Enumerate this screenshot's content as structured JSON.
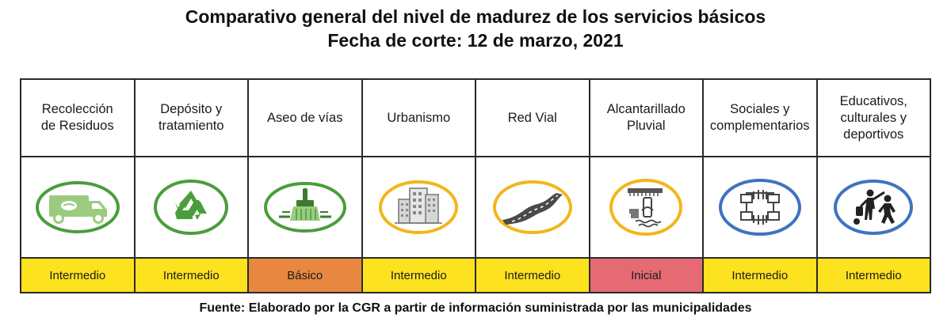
{
  "title_line1": "Comparativo general del nivel de madurez de los  servicios básicos",
  "title_line2": "Fecha de corte: 12 de marzo, 2021",
  "source": "Fuente: Elaborado por la CGR a partir de información suministrada por las municipalidades",
  "colors": {
    "intermedio": "#fde21f",
    "basico": "#e8873f",
    "inicial": "#e56a73",
    "green": "#4a9d3c",
    "gold": "#f2b61c",
    "blue": "#3f74bd"
  },
  "services": [
    {
      "name_lines": [
        "Recolección",
        "de Residuos"
      ],
      "icon": "garbage-truck-icon",
      "level": "Intermedio"
    },
    {
      "name_lines": [
        "Depósito y",
        "tratamiento"
      ],
      "icon": "recycle-icon",
      "level": "Intermedio"
    },
    {
      "name_lines": [
        "Aseo de vías"
      ],
      "icon": "broom-icon",
      "level": "Básico"
    },
    {
      "name_lines": [
        "Urbanismo"
      ],
      "icon": "buildings-icon",
      "level": "Intermedio"
    },
    {
      "name_lines": [
        "Red Vial"
      ],
      "icon": "road-icon",
      "level": "Intermedio"
    },
    {
      "name_lines": [
        "Alcantarillado",
        "Pluvial"
      ],
      "icon": "storm-drain-icon",
      "level": "Inicial"
    },
    {
      "name_lines": [
        "Sociales y",
        "complementarios"
      ],
      "icon": "helping-hands-icon",
      "level": "Intermedio"
    },
    {
      "name_lines": [
        "Educativos,",
        "culturales y",
        "deportivos"
      ],
      "icon": "people-activities-icon",
      "level": "Intermedio"
    }
  ]
}
